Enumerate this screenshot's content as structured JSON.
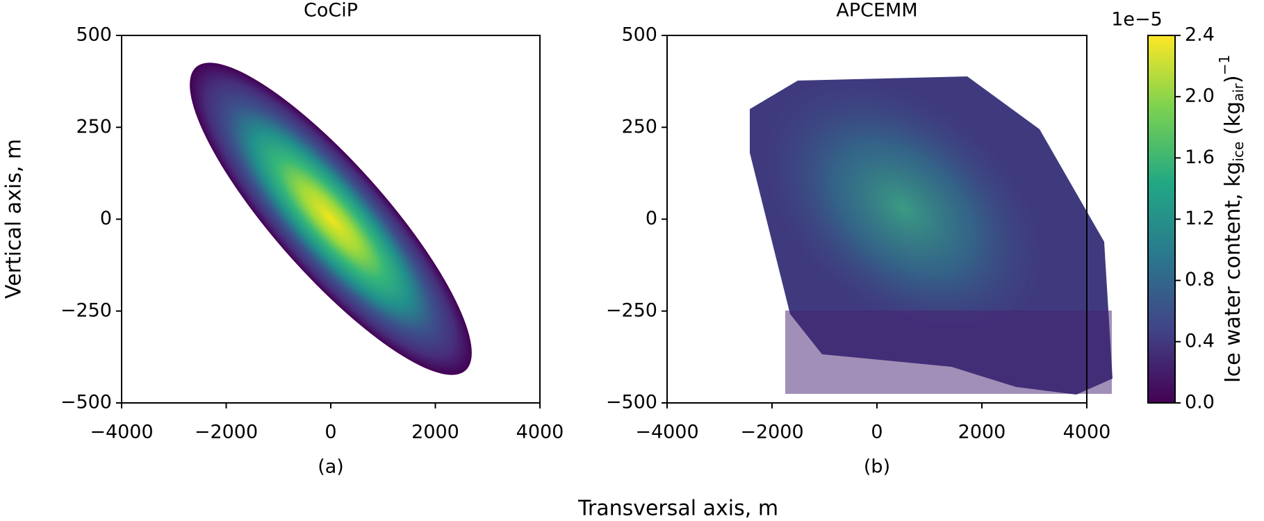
{
  "chart_data": [
    {
      "type": "heatmap",
      "title": "CoCiP",
      "label": "(a)",
      "xlim": [
        -4000,
        4000
      ],
      "ylim": [
        -500,
        500
      ],
      "xticks": [
        {
          "value": -4000,
          "label": "−4000"
        },
        {
          "value": -2000,
          "label": "−2000"
        },
        0,
        2000,
        4000
      ],
      "yticks": [
        {
          "value": -500,
          "label": "−500"
        },
        {
          "value": -250,
          "label": "−250"
        },
        0,
        250,
        500
      ]
    },
    {
      "type": "heatmap",
      "title": "APCEMM",
      "label": "(b)",
      "xlim": [
        -4000,
        4000
      ],
      "ylim": [
        -500,
        500
      ],
      "xticks": [
        {
          "value": -4000,
          "label": "−4000"
        },
        {
          "value": -2000,
          "label": "−2000"
        },
        0,
        2000,
        4000
      ],
      "yticks": [
        {
          "value": -500,
          "label": "−500"
        },
        {
          "value": -250,
          "label": "−250"
        },
        0,
        250,
        500
      ]
    }
  ],
  "xlabel": "Transversal axis, m",
  "ylabel": "Vertical axis, m",
  "colorbar": {
    "offset": "1e−5",
    "lim": [
      0,
      2.4
    ],
    "ticks": [
      {
        "value": 0,
        "label": "0.0"
      },
      0.4,
      0.8,
      1.2,
      1.6,
      {
        "value": 2,
        "label": "2.0"
      },
      2.4
    ],
    "label": [
      "Ice water content, kg",
      "ice",
      " (kg",
      "air",
      ")",
      "−1"
    ]
  }
}
